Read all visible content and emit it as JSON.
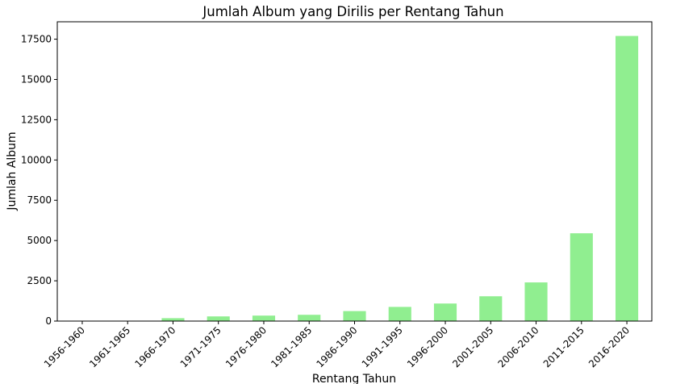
{
  "chart_data": {
    "type": "bar",
    "title": "Jumlah Album yang Dirilis per Rentang Tahun",
    "xlabel": "Rentang Tahun",
    "ylabel": "Jumlah Album",
    "categories": [
      "1956-1960",
      "1961-1965",
      "1966-1970",
      "1971-1975",
      "1976-1980",
      "1981-1985",
      "1986-1990",
      "1991-1995",
      "1996-2000",
      "2001-2005",
      "2006-2010",
      "2011-2015",
      "2016-2020"
    ],
    "values": [
      5,
      10,
      180,
      290,
      340,
      390,
      620,
      880,
      1090,
      1540,
      2400,
      5450,
      17700
    ],
    "ylim": [
      0,
      18580
    ],
    "yticks": [
      0,
      2500,
      5000,
      7500,
      10000,
      12500,
      15000,
      17500
    ],
    "ytick_labels": [
      "0",
      "2500",
      "5000",
      "7500",
      "10000",
      "12500",
      "15000",
      "17500"
    ],
    "grid": false,
    "bar_color": "#90ee90"
  }
}
